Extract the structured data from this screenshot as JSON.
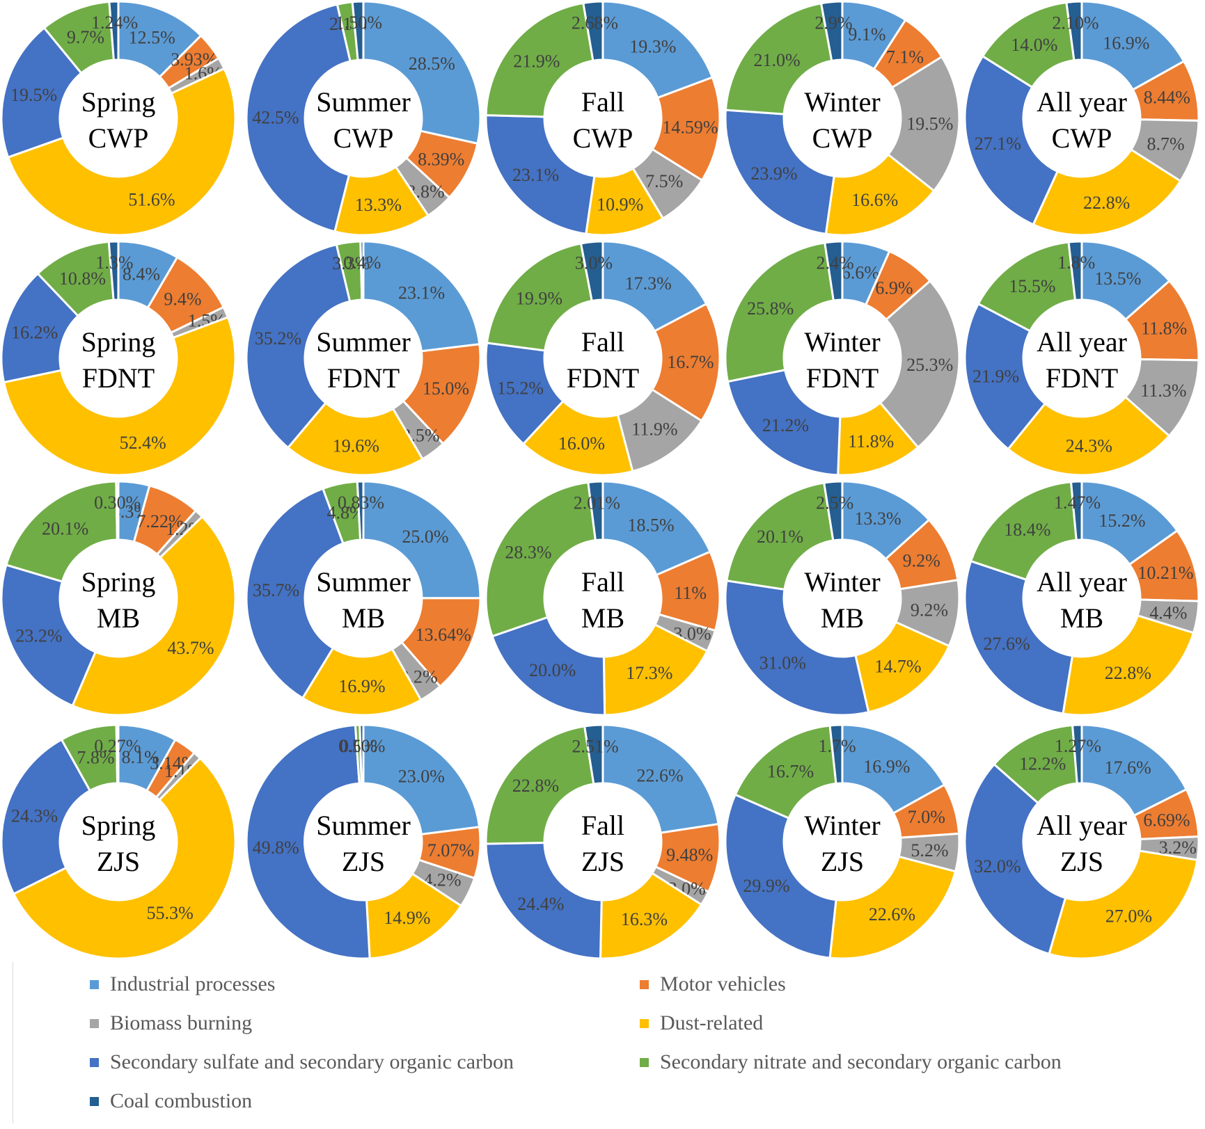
{
  "chart_data": {
    "type": "donut-grid",
    "categories": [
      "Industrial processes",
      "Motor vehicles",
      "Biomass burning",
      "Dust-related",
      "Secondary sulfate and secondary organic carbon",
      "Secondary nitrate and  secondary organic carbon",
      "Coal combustion"
    ],
    "colors": [
      "#5b9bd5",
      "#ed7d31",
      "#a5a5a5",
      "#ffc000",
      "#4472c4",
      "#70ad47",
      "#255e91"
    ],
    "legend_position": "bottom",
    "charts": [
      {
        "season": "Spring",
        "site": "CWP",
        "values": [
          12.5,
          3.93,
          1.6,
          51.6,
          19.5,
          9.7,
          1.24
        ],
        "labels": [
          "12.5%",
          "3.93%",
          "1.6%",
          "51.6%",
          "19.5%",
          "9.7%",
          "1.24%"
        ]
      },
      {
        "season": "Summer",
        "site": "CWP",
        "values": [
          28.5,
          8.39,
          3.8,
          13.3,
          42.5,
          2.1,
          1.5
        ],
        "labels": [
          "28.5%",
          "8.39%",
          "3.8%",
          "13.3%",
          "42.5%",
          "2.1%",
          "1.50%"
        ]
      },
      {
        "season": "Fall",
        "site": "CWP",
        "values": [
          19.3,
          14.59,
          7.5,
          10.9,
          23.1,
          21.9,
          2.68
        ],
        "labels": [
          "19.3%",
          "14.59%",
          "7.5%",
          "10.9%",
          "23.1%",
          "21.9%",
          "2.68%"
        ]
      },
      {
        "season": "Winter",
        "site": "CWP",
        "values": [
          9.1,
          7.1,
          19.5,
          16.6,
          23.9,
          21.0,
          2.9
        ],
        "labels": [
          "9.1%",
          "7.1%",
          "19.5%",
          "16.6%",
          "23.9%",
          "21.0%",
          "2.9%"
        ]
      },
      {
        "season": "All year",
        "site": "CWP",
        "values": [
          16.9,
          8.44,
          8.7,
          22.8,
          27.1,
          14.0,
          2.1
        ],
        "labels": [
          "16.9%",
          "8.44%",
          "8.7%",
          "22.8%",
          "27.1%",
          "14.0%",
          "2.10%"
        ]
      },
      {
        "season": "Spring",
        "site": "FDNT",
        "values": [
          8.4,
          9.4,
          1.5,
          52.4,
          16.2,
          10.8,
          1.3
        ],
        "labels": [
          "8.4%",
          "9.4%",
          "1.5%",
          "52.4%",
          "16.2%",
          "10.8%",
          "1.3%"
        ]
      },
      {
        "season": "Summer",
        "site": "FDNT",
        "values": [
          23.1,
          15.0,
          3.5,
          19.6,
          35.2,
          3.3,
          0.4
        ],
        "labels": [
          "23.1%",
          "15.0%",
          "3.5%",
          "19.6%",
          "35.2%",
          "3.3%",
          "0.4%"
        ]
      },
      {
        "season": "Fall",
        "site": "FDNT",
        "values": [
          17.3,
          16.7,
          11.9,
          16.0,
          15.2,
          19.9,
          3.0
        ],
        "labels": [
          "17.3%",
          "16.7%",
          "11.9%",
          "16.0%",
          "15.2%",
          "19.9%",
          "3.0%"
        ]
      },
      {
        "season": "Winter",
        "site": "FDNT",
        "values": [
          6.6,
          6.9,
          25.3,
          11.8,
          21.2,
          25.8,
          2.4
        ],
        "labels": [
          "6.6%",
          "6.9%",
          "25.3%",
          "11.8%",
          "21.2%",
          "25.8%",
          "2.4%"
        ]
      },
      {
        "season": "All year",
        "site": "FDNT",
        "values": [
          13.5,
          11.8,
          11.3,
          24.3,
          21.9,
          15.5,
          1.8
        ],
        "labels": [
          "13.5%",
          "11.8%",
          "11.3%",
          "24.3%",
          "21.9%",
          "15.5%",
          "1.8%"
        ]
      },
      {
        "season": "Spring",
        "site": "MB",
        "values": [
          4.3,
          7.22,
          1.2,
          43.7,
          23.2,
          20.1,
          0.3
        ],
        "labels": [
          "4.3%",
          "7.22%",
          "1.2%",
          "43.7%",
          "23.2%",
          "20.1%",
          "0.30%"
        ]
      },
      {
        "season": "Summer",
        "site": "MB",
        "values": [
          25.0,
          13.64,
          3.2,
          16.9,
          35.7,
          4.8,
          0.83
        ],
        "labels": [
          "25.0%",
          "13.64%",
          "3.2%",
          "16.9%",
          "35.7%",
          "4.8%",
          "0.83%"
        ]
      },
      {
        "season": "Fall",
        "site": "MB",
        "values": [
          18.5,
          11,
          3.0,
          17.3,
          20.0,
          28.3,
          2.01
        ],
        "labels": [
          "18.5%",
          "11%",
          "3.0%",
          "17.3%",
          "20.0%",
          "28.3%",
          "2.01%"
        ]
      },
      {
        "season": "Winter",
        "site": "MB",
        "values": [
          13.3,
          9.2,
          9.2,
          14.7,
          31.0,
          20.1,
          2.5
        ],
        "labels": [
          "13.3%",
          "9.2%",
          "9.2%",
          "14.7%",
          "31.0%",
          "20.1%",
          "2.5%"
        ]
      },
      {
        "season": "All year",
        "site": "MB",
        "values": [
          15.2,
          10.21,
          4.4,
          22.8,
          27.6,
          18.4,
          1.47
        ],
        "labels": [
          "15.2%",
          "10.21%",
          "4.4%",
          "22.8%",
          "27.6%",
          "18.4%",
          "1.47%"
        ]
      },
      {
        "season": "Spring",
        "site": "ZJS",
        "values": [
          8.1,
          3.14,
          1.1,
          55.3,
          24.3,
          7.8,
          0.27
        ],
        "labels": [
          "8.1%",
          "3.14%",
          "1.1%",
          "55.3%",
          "24.3%",
          "7.8%",
          "0.27%"
        ]
      },
      {
        "season": "Summer",
        "site": "ZJS",
        "values": [
          23.0,
          7.07,
          4.2,
          14.9,
          49.8,
          0.6,
          0.5
        ],
        "labels": [
          "23.0%",
          "7.07%",
          "4.2%",
          "14.9%",
          "49.8%",
          "0.6%",
          "0.50%"
        ]
      },
      {
        "season": "Fall",
        "site": "ZJS",
        "values": [
          22.6,
          9.48,
          2.0,
          16.3,
          24.4,
          22.8,
          2.51
        ],
        "labels": [
          "22.6%",
          "9.48%",
          "2.0%",
          "16.3%",
          "24.4%",
          "22.8%",
          "2.51%"
        ]
      },
      {
        "season": "Winter",
        "site": "ZJS",
        "values": [
          16.9,
          7.0,
          5.2,
          22.6,
          29.9,
          16.7,
          1.7
        ],
        "labels": [
          "16.9%",
          "7.0%",
          "5.2%",
          "22.6%",
          "29.9%",
          "16.7%",
          "1.7%"
        ]
      },
      {
        "season": "All year",
        "site": "ZJS",
        "values": [
          17.6,
          6.69,
          3.2,
          27.0,
          32.0,
          12.2,
          1.27
        ],
        "labels": [
          "17.6%",
          "6.69%",
          "3.2%",
          "27.0%",
          "32.0%",
          "12.2%",
          "1.27%"
        ]
      }
    ]
  }
}
